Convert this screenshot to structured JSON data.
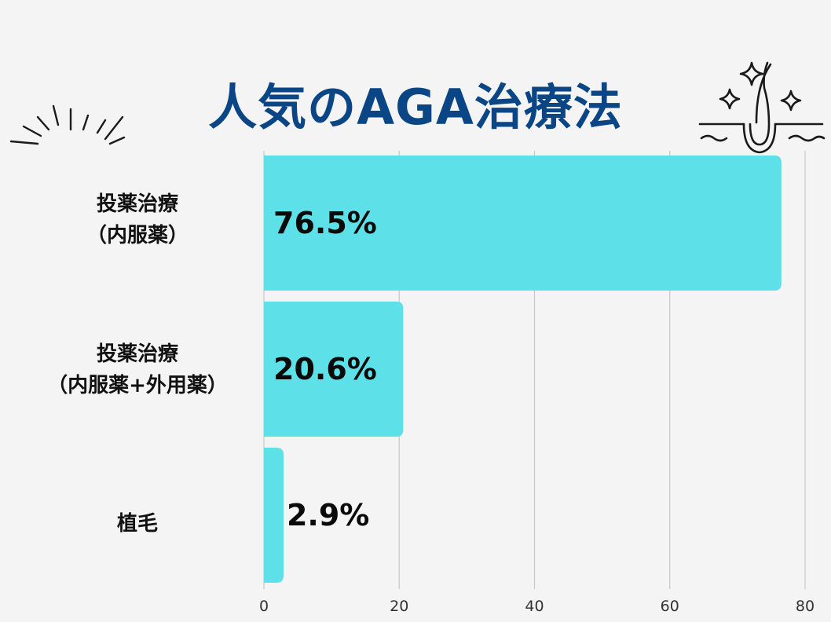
{
  "title": "人気のAGA治療法",
  "categories": [
    {
      "line1": "投薬治療",
      "line2": "（内服薬）"
    },
    {
      "line1": "投薬治療",
      "line2": "（内服薬+外用薬）"
    },
    {
      "line1": "植毛",
      "line2": ""
    }
  ],
  "chart_data": {
    "type": "bar",
    "orientation": "horizontal",
    "title": "人気のAGA治療法",
    "categories": [
      "投薬治療（内服薬）",
      "投薬治療（内服薬+外用薬）",
      "植毛"
    ],
    "values": [
      76.5,
      20.6,
      2.9
    ],
    "data_labels": [
      "76.5%",
      "20.6%",
      "2.9%"
    ],
    "xticks": [
      "0",
      "20",
      "40",
      "60",
      "80"
    ],
    "xlim": [
      0,
      80
    ],
    "grid": true,
    "bar_color": "#5ee0e8"
  },
  "colors": {
    "title": "#0a4585",
    "bar": "#5ee0e8",
    "grid": "#c8c8c8",
    "background": "#f4f4f4"
  },
  "decorations": [
    "burst-lines-icon",
    "hair-follicle-sparkle-icon"
  ]
}
